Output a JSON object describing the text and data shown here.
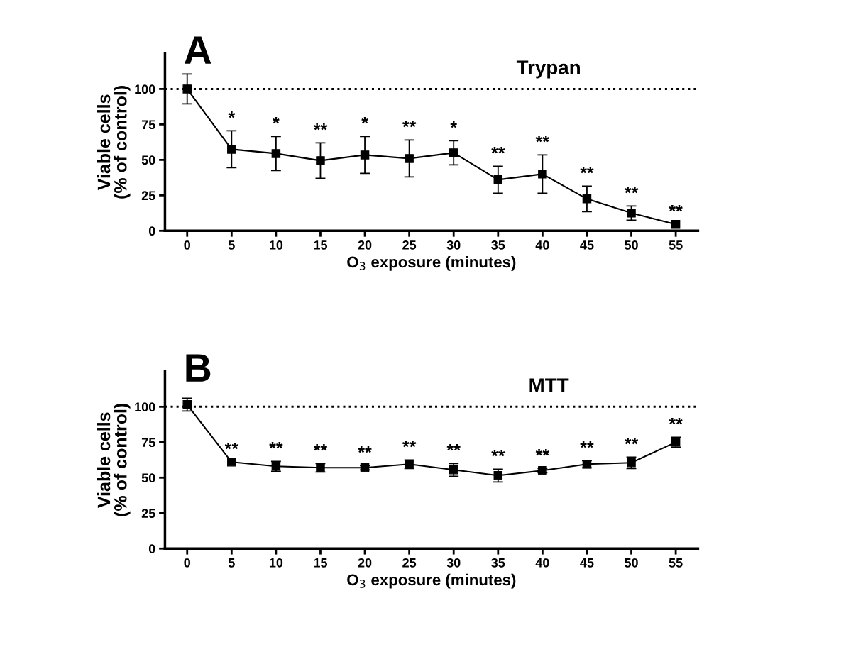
{
  "chart_data": [
    {
      "type": "line",
      "title": "A",
      "xlabel": "O$_{3}$ exposure (minutes)",
      "ylabel": "Viable cells\n(% of control)",
      "categories": [
        "0",
        "5",
        "10",
        "15",
        "20",
        "25",
        "30",
        "35",
        "40",
        "45",
        "50",
        "55"
      ],
      "series": [
        {
          "color": "#000000",
          "values": [
            100,
            57.5,
            54.5,
            49.5,
            53.5,
            51,
            55,
            36,
            40,
            22.5,
            12.5,
            4.5
          ],
          "errors": [
            10.5,
            13,
            12,
            12.5,
            13,
            13,
            8.5,
            9.5,
            13.5,
            9,
            5,
            null
          ]
        }
      ],
      "ylim": [
        0,
        125
      ],
      "yticks": [
        0,
        25,
        50,
        75,
        100
      ],
      "marker": "square",
      "line_style": "solid",
      "grid": false,
      "legend": false,
      "ref_lines": [
        {
          "axis": "y",
          "value": 100,
          "line_style": "dotted",
          "color": "#000000"
        }
      ],
      "annotations": [
        "Trypan",
        {
          "text": "*",
          "x": "5",
          "y": 57.5
        },
        {
          "text": "*",
          "x": "10",
          "y": 54.5
        },
        {
          "text": "**",
          "x": "15",
          "y": 49.5
        },
        {
          "text": "*",
          "x": "20",
          "y": 53.5
        },
        {
          "text": "**",
          "x": "25",
          "y": 51
        },
        {
          "text": "*",
          "x": "30",
          "y": 55
        },
        {
          "text": "**",
          "x": "35",
          "y": 36
        },
        {
          "text": "**",
          "x": "40",
          "y": 40
        },
        {
          "text": "**",
          "x": "45",
          "y": 22.5
        },
        {
          "text": "**",
          "x": "50",
          "y": 12.5
        },
        {
          "text": "**",
          "x": "55",
          "y": 4.5
        }
      ]
    },
    {
      "type": "line",
      "title": "B",
      "xlabel": "O$_{3}$ exposure (minutes)",
      "ylabel": "Viable cells\n(% of control)",
      "categories": [
        "0",
        "5",
        "10",
        "15",
        "20",
        "25",
        "30",
        "35",
        "40",
        "45",
        "50",
        "55"
      ],
      "series": [
        {
          "color": "#000000",
          "values": [
            101.5,
            61,
            58,
            57,
            57,
            59.5,
            55.5,
            51.5,
            55,
            59.5,
            60.5,
            75
          ],
          "errors": [
            4.5,
            null,
            3.5,
            3,
            1.5,
            3,
            4.5,
            4.5,
            1.5,
            2.5,
            4,
            3.5
          ]
        }
      ],
      "ylim": [
        0,
        125
      ],
      "yticks": [
        0,
        25,
        50,
        75,
        100
      ],
      "marker": "square",
      "line_style": "solid",
      "grid": false,
      "legend": false,
      "ref_lines": [
        {
          "axis": "y",
          "value": 100,
          "line_style": "dotted",
          "color": "#000000"
        }
      ],
      "annotations": [
        "MTT",
        {
          "text": "**",
          "x": "5",
          "y": 61
        },
        {
          "text": "**",
          "x": "10",
          "y": 58
        },
        {
          "text": "**",
          "x": "15",
          "y": 57
        },
        {
          "text": "**",
          "x": "20",
          "y": 57
        },
        {
          "text": "**",
          "x": "25",
          "y": 59.5
        },
        {
          "text": "**",
          "x": "30",
          "y": 55.5
        },
        {
          "text": "**",
          "x": "35",
          "y": 51.5
        },
        {
          "text": "**",
          "x": "40",
          "y": 55
        },
        {
          "text": "**",
          "x": "45",
          "y": 59.5
        },
        {
          "text": "**",
          "x": "50",
          "y": 60.5
        },
        {
          "text": "**",
          "x": "55",
          "y": 75
        }
      ]
    }
  ]
}
